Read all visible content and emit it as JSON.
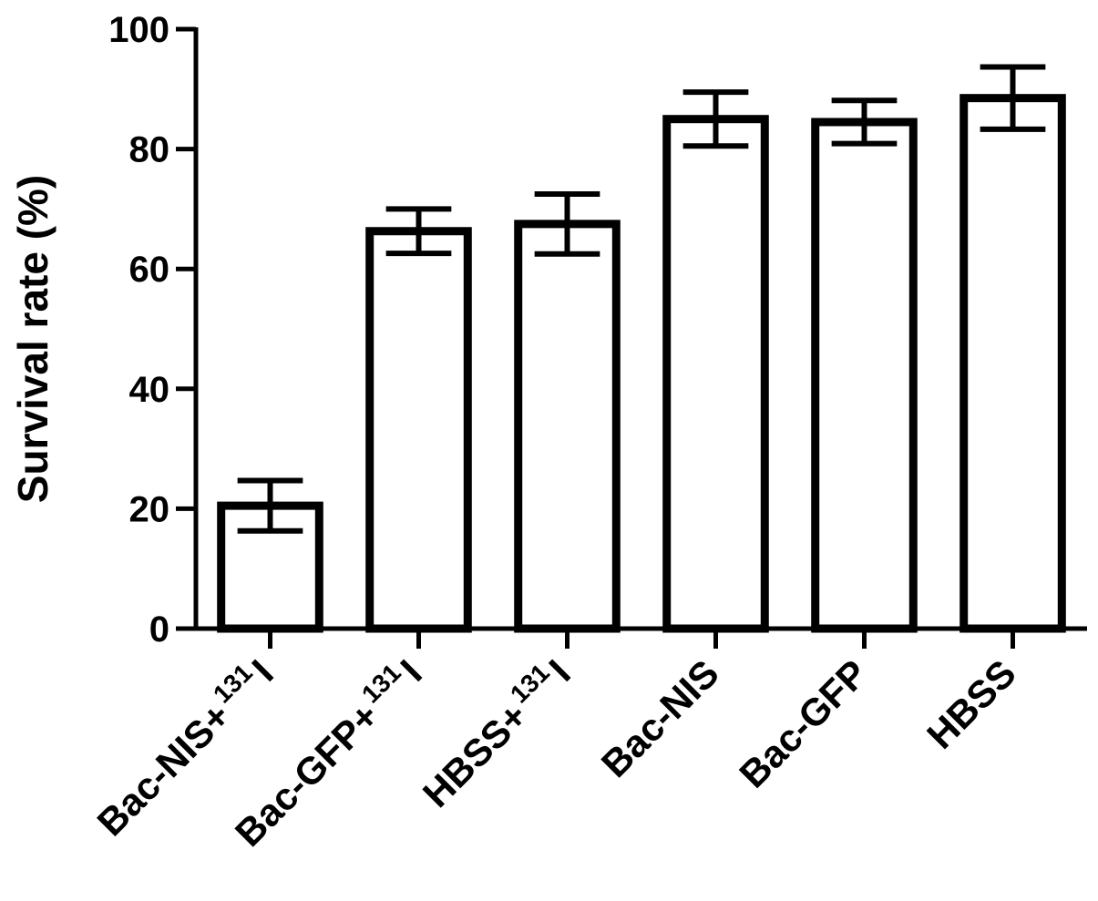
{
  "chart_data": {
    "type": "bar",
    "categories": [
      {
        "main": "Bac-NIS+",
        "sup": "131",
        "suffix": "I"
      },
      {
        "main": "Bac-GFP+",
        "sup": "131",
        "suffix": "I"
      },
      {
        "main": "HBSS+",
        "sup": "131",
        "suffix": "I"
      },
      {
        "main": "Bac-NIS",
        "sup": "",
        "suffix": ""
      },
      {
        "main": "Bac-GFP",
        "sup": "",
        "suffix": ""
      },
      {
        "main": "HBSS",
        "sup": "",
        "suffix": ""
      }
    ],
    "values": [
      20.5,
      66.3,
      67.5,
      85.0,
      84.5,
      88.5
    ],
    "errors": [
      4.2,
      3.7,
      5.0,
      4.5,
      3.6,
      5.2
    ],
    "title": "",
    "xlabel": "",
    "ylabel": "Survival rate (%)",
    "ylim": [
      0,
      100
    ],
    "yticks": [
      0,
      20,
      40,
      60,
      80,
      100
    ],
    "grid": false,
    "legend": "none",
    "colors": {
      "bar_fill": "#ffffff",
      "stroke": "#000000"
    }
  }
}
